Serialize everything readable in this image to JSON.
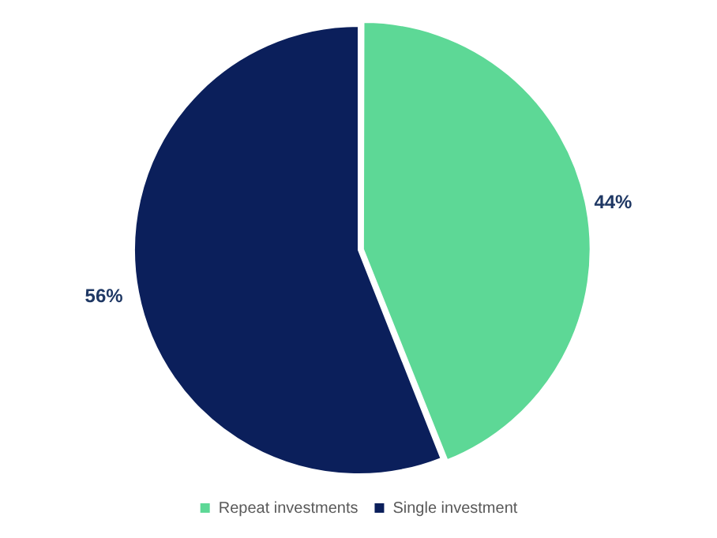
{
  "chart_data": {
    "type": "pie",
    "categories": [
      "Repeat investments",
      "Single investment"
    ],
    "values": [
      44,
      56
    ],
    "colors": [
      "#5dd896",
      "#0b1f5b"
    ],
    "value_labels": [
      "44%",
      "56%"
    ],
    "legend": "bottom"
  }
}
